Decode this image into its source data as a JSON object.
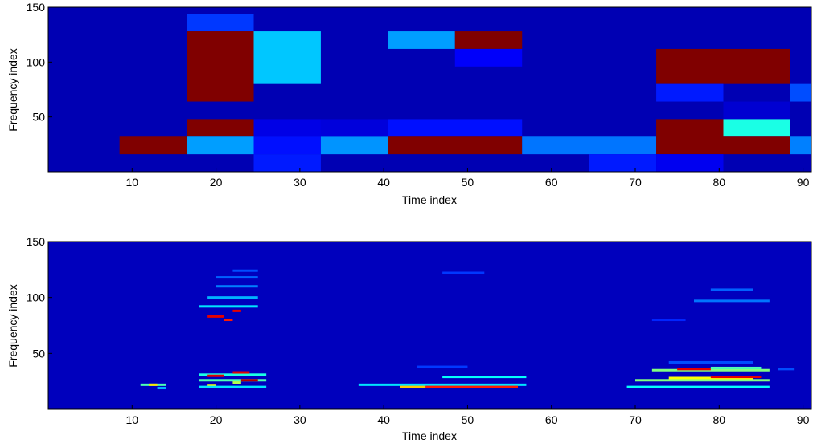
{
  "colors": {
    "background": "#00007f",
    "colormap": "jet"
  },
  "chart_data": [
    {
      "type": "heatmap",
      "title": "",
      "xlabel": "Time index",
      "ylabel": "Frequency index",
      "xlim": [
        0,
        91
      ],
      "ylim": [
        0,
        150
      ],
      "xticks": [
        10,
        20,
        30,
        40,
        50,
        60,
        70,
        80,
        90
      ],
      "yticks": [
        50,
        100,
        150
      ],
      "value_scale": [
        0,
        1
      ],
      "background_value": 0.05,
      "cells": [
        {
          "t0": 16.5,
          "t1": 24.5,
          "f0": 128,
          "f1": 144,
          "v": 0.18
        },
        {
          "t0": 16.5,
          "t1": 24.5,
          "f0": 64,
          "f1": 128,
          "v": 1.0
        },
        {
          "t0": 16.5,
          "t1": 24.5,
          "f0": 32,
          "f1": 48,
          "v": 1.0
        },
        {
          "t0": 16.5,
          "t1": 24.5,
          "f0": 16,
          "f1": 32,
          "v": 0.28
        },
        {
          "t0": 8.5,
          "t1": 16.5,
          "f0": 16,
          "f1": 32,
          "v": 1.0
        },
        {
          "t0": 24.5,
          "t1": 32.5,
          "f0": 80,
          "f1": 128,
          "v": 0.32
        },
        {
          "t0": 24.5,
          "t1": 32.5,
          "f0": 32,
          "f1": 48,
          "v": 0.1
        },
        {
          "t0": 24.5,
          "t1": 32.5,
          "f0": 16,
          "f1": 32,
          "v": 0.14
        },
        {
          "t0": 24.5,
          "t1": 32.5,
          "f0": 0,
          "f1": 16,
          "v": 0.15
        },
        {
          "t0": 32.5,
          "t1": 40.5,
          "f0": 16,
          "f1": 32,
          "v": 0.27
        },
        {
          "t0": 32.5,
          "t1": 40.5,
          "f0": 32,
          "f1": 48,
          "v": 0.09
        },
        {
          "t0": 40.5,
          "t1": 48.5,
          "f0": 112,
          "f1": 128,
          "v": 0.28
        },
        {
          "t0": 48.5,
          "t1": 56.5,
          "f0": 112,
          "f1": 128,
          "v": 1.0
        },
        {
          "t0": 48.5,
          "t1": 56.5,
          "f0": 96,
          "f1": 112,
          "v": 0.12
        },
        {
          "t0": 40.5,
          "t1": 56.5,
          "f0": 32,
          "f1": 48,
          "v": 0.14
        },
        {
          "t0": 40.5,
          "t1": 56.5,
          "f0": 16,
          "f1": 32,
          "v": 1.0
        },
        {
          "t0": 56.5,
          "t1": 72.5,
          "f0": 16,
          "f1": 32,
          "v": 0.24
        },
        {
          "t0": 64.5,
          "t1": 72.5,
          "f0": 0,
          "f1": 16,
          "v": 0.15
        },
        {
          "t0": 72.5,
          "t1": 88.5,
          "f0": 80,
          "f1": 112,
          "v": 1.0
        },
        {
          "t0": 72.5,
          "t1": 80.5,
          "f0": 64,
          "f1": 80,
          "v": 0.15
        },
        {
          "t0": 80.5,
          "t1": 88.5,
          "f0": 48,
          "f1": 64,
          "v": 0.08
        },
        {
          "t0": 72.5,
          "t1": 80.5,
          "f0": 16,
          "f1": 48,
          "v": 1.0
        },
        {
          "t0": 80.5,
          "t1": 88.5,
          "f0": 32,
          "f1": 48,
          "v": 0.4
        },
        {
          "t0": 80.5,
          "t1": 88.5,
          "f0": 16,
          "f1": 32,
          "v": 1.0
        },
        {
          "t0": 72.5,
          "t1": 80.5,
          "f0": 0,
          "f1": 16,
          "v": 0.11
        },
        {
          "t0": 88.5,
          "t1": 91,
          "f0": 64,
          "f1": 80,
          "v": 0.2
        },
        {
          "t0": 88.5,
          "t1": 91,
          "f0": 16,
          "f1": 32,
          "v": 0.25
        }
      ]
    },
    {
      "type": "heatmap",
      "title": "",
      "xlabel": "Time index",
      "ylabel": "Frequency index",
      "xlim": [
        0,
        91
      ],
      "ylim": [
        0,
        150
      ],
      "xticks": [
        10,
        20,
        30,
        40,
        50,
        60,
        70,
        80,
        90
      ],
      "yticks": [
        50,
        100,
        150
      ],
      "value_scale": [
        0,
        1
      ],
      "background_value": 0.06,
      "streaks": [
        {
          "t0": 11,
          "t1": 14,
          "f": 22,
          "v": 0.45
        },
        {
          "t0": 12,
          "t1": 13,
          "f": 22,
          "v": 0.65
        },
        {
          "t0": 13,
          "t1": 14,
          "f": 19,
          "v": 0.3
        },
        {
          "t0": 18,
          "t1": 26,
          "f": 31,
          "v": 0.4
        },
        {
          "t0": 19,
          "t1": 21,
          "f": 30,
          "v": 0.9
        },
        {
          "t0": 22,
          "t1": 24,
          "f": 33,
          "v": 0.9
        },
        {
          "t0": 18,
          "t1": 26,
          "f": 26,
          "v": 0.45
        },
        {
          "t0": 19,
          "t1": 20,
          "f": 21,
          "v": 0.62
        },
        {
          "t0": 22,
          "t1": 23,
          "f": 24,
          "v": 0.55
        },
        {
          "t0": 23,
          "t1": 25,
          "f": 26,
          "v": 0.95
        },
        {
          "t0": 18,
          "t1": 26,
          "f": 20,
          "v": 0.35
        },
        {
          "t0": 19,
          "t1": 21,
          "f": 83,
          "v": 0.9
        },
        {
          "t0": 21,
          "t1": 22,
          "f": 80,
          "v": 0.85
        },
        {
          "t0": 22,
          "t1": 23,
          "f": 88,
          "v": 0.9
        },
        {
          "t0": 18,
          "t1": 25,
          "f": 92,
          "v": 0.35
        },
        {
          "t0": 19,
          "t1": 25,
          "f": 100,
          "v": 0.3
        },
        {
          "t0": 20,
          "t1": 25,
          "f": 110,
          "v": 0.25
        },
        {
          "t0": 20,
          "t1": 25,
          "f": 118,
          "v": 0.22
        },
        {
          "t0": 22,
          "t1": 25,
          "f": 124,
          "v": 0.2
        },
        {
          "t0": 37,
          "t1": 57,
          "f": 22,
          "v": 0.35
        },
        {
          "t0": 42,
          "t1": 45,
          "f": 20,
          "v": 0.68
        },
        {
          "t0": 45,
          "t1": 56,
          "f": 20,
          "v": 0.85
        },
        {
          "t0": 47,
          "t1": 57,
          "f": 29,
          "v": 0.38
        },
        {
          "t0": 44,
          "t1": 50,
          "f": 38,
          "v": 0.18
        },
        {
          "t0": 47,
          "t1": 52,
          "f": 122,
          "v": 0.18
        },
        {
          "t0": 69,
          "t1": 86,
          "f": 20,
          "v": 0.38
        },
        {
          "t0": 70,
          "t1": 86,
          "f": 26,
          "v": 0.5
        },
        {
          "t0": 74,
          "t1": 84,
          "f": 28,
          "v": 0.62
        },
        {
          "t0": 79,
          "t1": 85,
          "f": 29,
          "v": 0.9
        },
        {
          "t0": 72,
          "t1": 86,
          "f": 35,
          "v": 0.5
        },
        {
          "t0": 75,
          "t1": 79,
          "f": 36,
          "v": 0.9
        },
        {
          "t0": 79,
          "t1": 85,
          "f": 37,
          "v": 0.45
        },
        {
          "t0": 74,
          "t1": 84,
          "f": 42,
          "v": 0.2
        },
        {
          "t0": 77,
          "t1": 86,
          "f": 97,
          "v": 0.24
        },
        {
          "t0": 79,
          "t1": 84,
          "f": 107,
          "v": 0.22
        },
        {
          "t0": 72,
          "t1": 76,
          "f": 80,
          "v": 0.16
        },
        {
          "t0": 87,
          "t1": 89,
          "f": 36,
          "v": 0.2
        }
      ]
    }
  ]
}
